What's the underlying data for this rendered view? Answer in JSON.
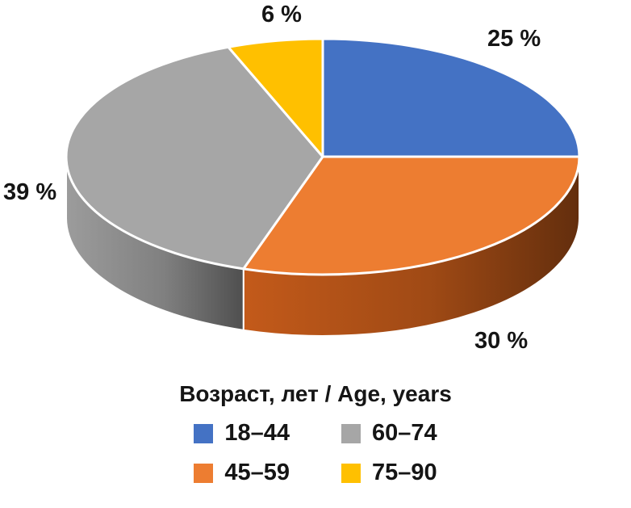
{
  "chart_data": {
    "type": "pie",
    "style": "3d",
    "title": "Возраст, лет / Age, years",
    "legend_position": "bottom",
    "unit": "%",
    "direction": "clockwise",
    "start_angle_deg": 0,
    "slices": [
      {
        "label": "18–44",
        "value": 25,
        "display": "25 %",
        "color": "#4472c4",
        "side_color": "#31548f"
      },
      {
        "label": "45–59",
        "value": 30,
        "display": "30 %",
        "color": "#ed7d31",
        "side_color": "#a04a15"
      },
      {
        "label": "60–74",
        "value": 39,
        "display": "39 %",
        "color": "#a6a6a6",
        "side_color": "#808080"
      },
      {
        "label": "75–90",
        "value": 6,
        "display": "6 %",
        "color": "#ffc000",
        "side_color": "#b08400"
      }
    ],
    "legend_display_order": [
      "18–44",
      "60–74",
      "45–59",
      "75–90"
    ]
  }
}
